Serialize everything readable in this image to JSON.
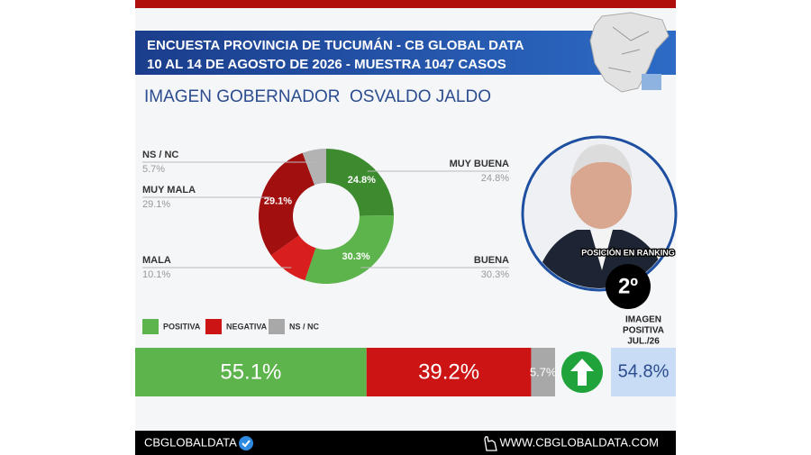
{
  "header": {
    "title": "ENCUESTA PROVINCIA DE TUCUMÁN - CB GLOBAL DATA",
    "subtitle": "10 AL 14 DE AGOSTO DE 2026 - MUESTRA 1047 CASOS"
  },
  "chart_data": [
    {
      "type": "pie",
      "title": "IMAGEN GOBERNADOR  OSVALDO JALDO",
      "categories": [
        "MUY BUENA",
        "BUENA",
        "MALA",
        "MUY MALA",
        "NS / NC"
      ],
      "values": [
        24.8,
        30.3,
        10.1,
        29.1,
        5.7
      ],
      "value_labels": [
        "24.8%",
        "30.3%",
        "10.1%",
        "29.1%",
        "5.7%"
      ],
      "colors": [
        "#3d8b2f",
        "#5db34c",
        "#d91e1e",
        "#a10f0f",
        "#b3b3b3"
      ]
    },
    {
      "type": "bar",
      "stacked": true,
      "orientation": "horizontal",
      "xlim": [
        0,
        100
      ],
      "series": [
        {
          "name": "POSITIVA",
          "color": "#5db34c",
          "values": [
            55.1
          ],
          "value_labels": [
            "55.1%"
          ]
        },
        {
          "name": "NEGATIVA",
          "color": "#cc1414",
          "values": [
            39.2
          ],
          "value_labels": [
            "39.2%"
          ]
        },
        {
          "name": "NS / NC",
          "color": "#a8a8a8",
          "values": [
            5.7
          ],
          "value_labels": [
            "5.7%"
          ]
        }
      ]
    }
  ],
  "previous": {
    "label": [
      "IMAGEN",
      "POSITIVA",
      "JUL./26"
    ],
    "value": "54.8%"
  },
  "ranking": {
    "label": "POSICIÓN EN RANKING",
    "position": "2º"
  },
  "footer": {
    "brand": "CBGLOBALDATA",
    "url": "WWW.CBGLOBALDATA.COM"
  }
}
